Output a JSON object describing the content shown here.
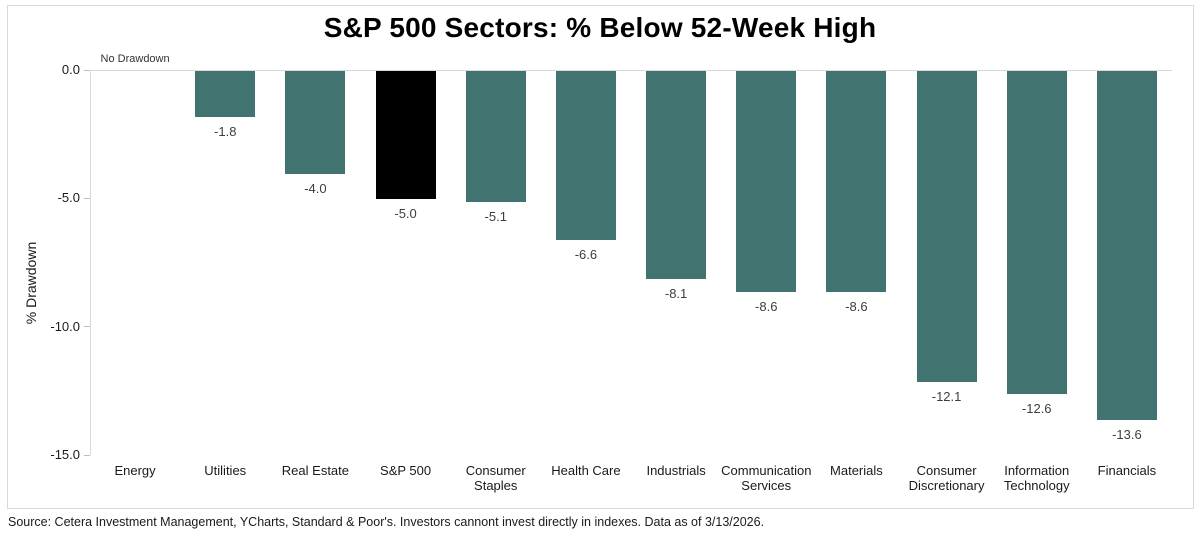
{
  "chart_data": {
    "type": "bar",
    "title": "S&P 500 Sectors: % Below 52-Week High",
    "ylabel": "% Drawdown",
    "xlabel": "",
    "ylim": [
      -15,
      0
    ],
    "yticks": [
      0,
      -5,
      -10,
      -15
    ],
    "ytick_labels": [
      "0.0",
      "-5.0",
      "-10.0",
      "-15.0"
    ],
    "grid": false,
    "legend": "none",
    "bar_color": "#417371",
    "highlight_color": "#000000",
    "points": [
      {
        "category": "Energy",
        "value": 0,
        "label": "No Drawdown"
      },
      {
        "category": "Utilities",
        "value": -1.8,
        "label": "-1.8"
      },
      {
        "category": "Real Estate",
        "value": -4.0,
        "label": "-4.0"
      },
      {
        "category": "S&P 500",
        "value": -5.0,
        "label": "-5.0",
        "highlight": true
      },
      {
        "category": "Consumer Staples",
        "value": -5.1,
        "label": "-5.1"
      },
      {
        "category": "Health Care",
        "value": -6.6,
        "label": "-6.6"
      },
      {
        "category": "Industrials",
        "value": -8.1,
        "label": "-8.1"
      },
      {
        "category": "Communication Services",
        "value": -8.6,
        "label": "-8.6"
      },
      {
        "category": "Materials",
        "value": -8.6,
        "label": "-8.6"
      },
      {
        "category": "Consumer Discretionary",
        "value": -12.1,
        "label": "-12.1"
      },
      {
        "category": "Information Technology",
        "value": -12.6,
        "label": "-12.6"
      },
      {
        "category": "Financials",
        "value": -13.6,
        "label": "-13.6"
      }
    ]
  },
  "footer": {
    "source": "Source: Cetera Investment Management, YCharts, Standard & Poor's. Investors cannont invest directly in indexes. Data as of 3/13/2026."
  }
}
